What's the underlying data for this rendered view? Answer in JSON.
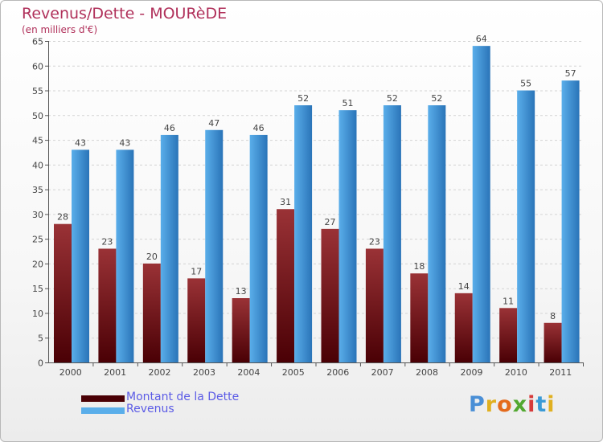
{
  "title": "Revenus/Dette - MOURèDE",
  "subtitle": "(en milliers d'€)",
  "brand": "Proxiti",
  "colors": {
    "dette_light": "#9a3236",
    "dette_dark": "#4a0005",
    "revenus_light": "#5aaeea",
    "revenus_dark": "#2a74b8",
    "title": "#b0305a",
    "legend_text": "#5b5be6"
  },
  "chart_data": {
    "type": "bar",
    "categories": [
      "2000",
      "2001",
      "2002",
      "2003",
      "2004",
      "2005",
      "2006",
      "2007",
      "2008",
      "2009",
      "2010",
      "2011"
    ],
    "series": [
      {
        "name": "Montant de la Dette",
        "values": [
          28,
          23,
          20,
          17,
          13,
          31,
          27,
          23,
          18,
          14,
          11,
          8
        ]
      },
      {
        "name": "Revenus",
        "values": [
          43,
          43,
          46,
          47,
          46,
          52,
          51,
          52,
          52,
          64,
          55,
          57
        ]
      }
    ],
    "ylim": [
      0,
      65
    ],
    "yticks": [
      0,
      5,
      10,
      15,
      20,
      25,
      30,
      35,
      40,
      45,
      50,
      55,
      60,
      65
    ],
    "grid": true,
    "legend": "bottom-left"
  }
}
